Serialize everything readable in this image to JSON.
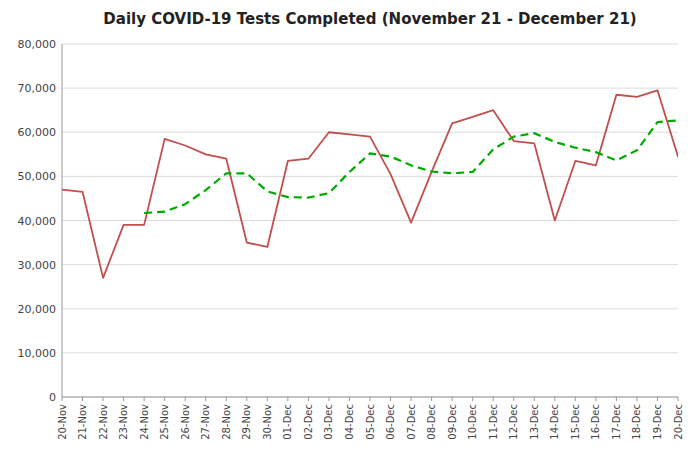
{
  "chart_data": {
    "type": "line",
    "title": "Daily COVID-19 Tests Completed (November 21 - December 21)",
    "categories": [
      "20-Nov",
      "21-Nov",
      "22-Nov",
      "23-Nov",
      "24-Nov",
      "25-Nov",
      "26-Nov",
      "27-Nov",
      "28-Nov",
      "29-Nov",
      "30-Nov",
      "01-Dec",
      "02-Dec",
      "03-Dec",
      "04-Dec",
      "05-Dec",
      "06-Dec",
      "07-Dec",
      "08-Dec",
      "09-Dec",
      "10-Dec",
      "11-Dec",
      "12-Dec",
      "13-Dec",
      "14-Dec",
      "15-Dec",
      "16-Dec",
      "17-Dec",
      "18-Dec",
      "19-Dec",
      "20-Dec"
    ],
    "series": [
      {
        "color": "#c0504d",
        "line_style": "solid",
        "values": [
          47000,
          46500,
          27000,
          39000,
          39000,
          58500,
          57000,
          55000,
          54000,
          35000,
          34000,
          53500,
          54000,
          60000,
          59500,
          59000,
          50500,
          39500,
          51000,
          62000,
          63500,
          65000,
          58000,
          57500,
          40000,
          53500,
          52500,
          68500,
          68000,
          69500,
          54500
        ]
      },
      {
        "color": "#00aa00",
        "line_style": "dashed",
        "values": [
          null,
          null,
          null,
          null,
          41700,
          42000,
          43700,
          46900,
          50700,
          50700,
          46600,
          45300,
          45200,
          46200,
          51000,
          55200,
          54500,
          52500,
          51100,
          50700,
          51000,
          56100,
          59000,
          59800,
          57800,
          56500,
          55500,
          53600,
          55900,
          62300,
          62700
        ]
      }
    ],
    "ylim": [
      0,
      80000
    ],
    "yticks": [
      0,
      {
        "value": 10000,
        "label": "10,000"
      },
      {
        "value": 20000,
        "label": "20,000"
      },
      {
        "value": 30000,
        "label": "30,000"
      },
      {
        "value": 40000,
        "label": "40,000"
      },
      {
        "value": 50000,
        "label": "50,000"
      },
      {
        "value": 60000,
        "label": "60,000"
      },
      {
        "value": 70000,
        "label": "70,000"
      },
      {
        "value": 80000,
        "label": "80,000"
      }
    ],
    "grid": true
  }
}
